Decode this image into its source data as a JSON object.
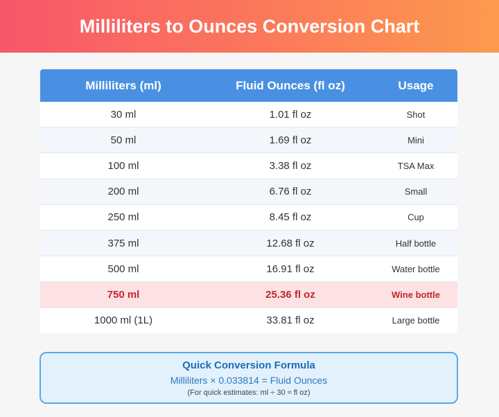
{
  "header": {
    "title": "Milliliters to Ounces Conversion Chart"
  },
  "table": {
    "columns": [
      "Milliliters (ml)",
      "Fluid Ounces (fl oz)",
      "Usage"
    ],
    "rows": [
      [
        "30 ml",
        "1.01 fl oz",
        "Shot"
      ],
      [
        "50 ml",
        "1.69 fl oz",
        "Mini"
      ],
      [
        "100 ml",
        "3.38 fl oz",
        "TSA Max"
      ],
      [
        "200 ml",
        "6.76 fl oz",
        "Small"
      ],
      [
        "250 ml",
        "8.45 fl oz",
        "Cup"
      ],
      [
        "375 ml",
        "12.68 fl oz",
        "Half bottle"
      ],
      [
        "500 ml",
        "16.91 fl oz",
        "Water bottle"
      ],
      [
        "750 ml",
        "25.36 fl oz",
        "Wine bottle"
      ],
      [
        "1000 ml (1L)",
        "33.81 fl oz",
        "Large bottle"
      ]
    ]
  },
  "formula": {
    "title": "Quick Conversion Formula",
    "expression": "Milliliters × 0.033814 = Fluid Ounces",
    "note": "(For quick estimates: ml ÷ 30 ≈ fl oz)"
  }
}
